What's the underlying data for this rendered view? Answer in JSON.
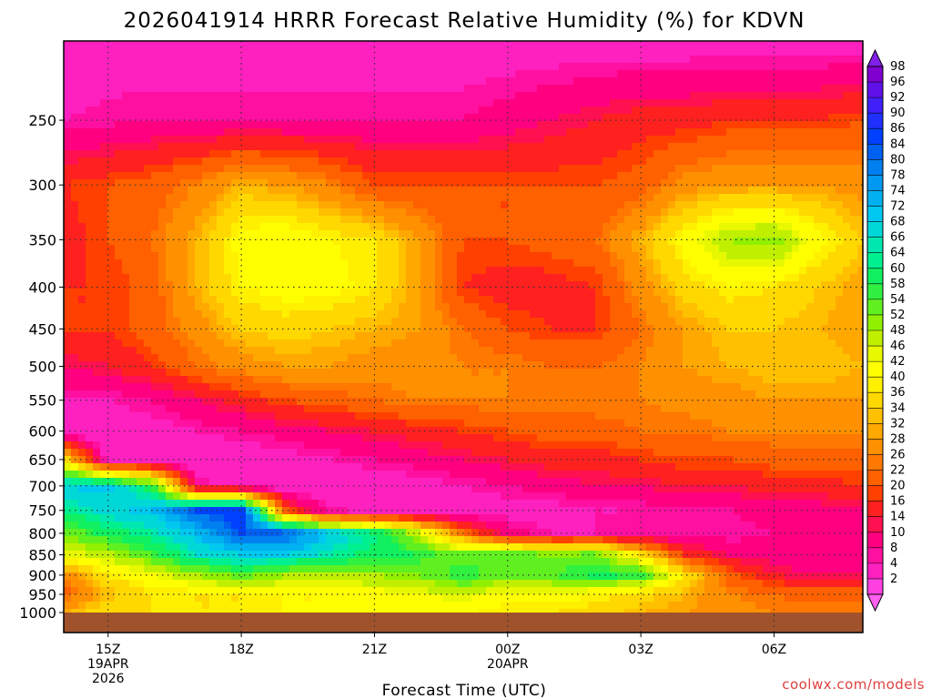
{
  "chart_data": {
    "type": "heatmap",
    "title": "2026041914 HRRR Forecast Relative Humidity (%) for KDVN",
    "xlabel": "Forecast Time (UTC)",
    "ylabel": "",
    "credit": "coolwx.com/models",
    "x_ticks": [
      {
        "hour": 15,
        "lines": [
          "15Z",
          "19APR",
          "2026"
        ]
      },
      {
        "hour": 18,
        "lines": [
          "18Z"
        ]
      },
      {
        "hour": 21,
        "lines": [
          "21Z"
        ]
      },
      {
        "hour": 24,
        "lines": [
          "00Z",
          "20APR"
        ]
      },
      {
        "hour": 27,
        "lines": [
          "03Z"
        ]
      },
      {
        "hour": 30,
        "lines": [
          "06Z"
        ]
      }
    ],
    "xlim_hours": [
      14,
      32
    ],
    "y_ticks": [
      250,
      300,
      350,
      400,
      450,
      500,
      550,
      600,
      650,
      700,
      750,
      800,
      850,
      900,
      950,
      1000
    ],
    "ylim_hpa": [
      200,
      1000
    ],
    "y_scale": "log",
    "grid": true,
    "ground_color": "#a0522d",
    "colorbar_labels": [
      "98",
      "96",
      "92",
      "90",
      "86",
      "84",
      "80",
      "78",
      "74",
      "72",
      "68",
      "66",
      "64",
      "60",
      "58",
      "54",
      "52",
      "48",
      "46",
      "42",
      "40",
      "36",
      "34",
      "32",
      "28",
      "26",
      "22",
      "20",
      "16",
      "14",
      "10",
      "8",
      "4",
      "2"
    ],
    "colorbar_colors": [
      "#8000d0",
      "#6010e8",
      "#4020f8",
      "#2030ff",
      "#0040ff",
      "#0060f0",
      "#0080f0",
      "#0098f0",
      "#00b0f0",
      "#00c8f0",
      "#00d8d8",
      "#00e8b0",
      "#00f090",
      "#10f060",
      "#30f040",
      "#60f020",
      "#90f000",
      "#c0f000",
      "#e8f800",
      "#ffff00",
      "#fff000",
      "#ffd800",
      "#ffc000",
      "#ffa800",
      "#ff9000",
      "#ff7800",
      "#ff6000",
      "#ff4000",
      "#ff2020",
      "#ff1050",
      "#ff0080",
      "#ff10a0",
      "#ff20c0",
      "#ff40e0"
    ],
    "hours": [
      14,
      15,
      16,
      17,
      18,
      19,
      20,
      21,
      22,
      23,
      24,
      25,
      26,
      27,
      28,
      29,
      30,
      31,
      32
    ],
    "levels": [
      200,
      250,
      300,
      350,
      400,
      450,
      500,
      550,
      600,
      650,
      700,
      750,
      800,
      850,
      900,
      950,
      1000
    ],
    "values": [
      [
        5,
        5,
        5,
        5,
        5,
        5,
        5,
        5,
        5,
        5,
        5,
        5,
        5,
        5,
        5,
        5,
        5,
        5,
        5
      ],
      [
        8,
        9,
        10,
        10,
        10,
        10,
        10,
        10,
        10,
        10,
        12,
        14,
        16,
        18,
        18,
        20,
        20,
        20,
        22
      ],
      [
        20,
        22,
        24,
        28,
        34,
        32,
        28,
        22,
        22,
        22,
        22,
        22,
        22,
        24,
        30,
        32,
        32,
        32,
        30
      ],
      [
        18,
        22,
        26,
        34,
        44,
        46,
        42,
        40,
        32,
        22,
        22,
        24,
        26,
        34,
        44,
        52,
        54,
        44,
        36
      ],
      [
        20,
        20,
        24,
        34,
        42,
        44,
        44,
        40,
        32,
        20,
        18,
        18,
        20,
        30,
        38,
        42,
        40,
        36,
        32
      ],
      [
        20,
        20,
        24,
        30,
        36,
        38,
        36,
        34,
        32,
        26,
        22,
        20,
        20,
        26,
        32,
        36,
        36,
        34,
        32
      ],
      [
        14,
        16,
        20,
        26,
        30,
        32,
        32,
        30,
        30,
        28,
        28,
        26,
        26,
        28,
        32,
        34,
        36,
        36,
        34
      ],
      [
        8,
        8,
        10,
        14,
        18,
        22,
        24,
        26,
        28,
        28,
        28,
        28,
        28,
        28,
        30,
        30,
        32,
        32,
        32
      ],
      [
        4,
        4,
        6,
        8,
        10,
        12,
        14,
        16,
        18,
        20,
        22,
        24,
        24,
        26,
        26,
        28,
        28,
        28,
        28
      ],
      [
        40,
        6,
        4,
        4,
        4,
        6,
        8,
        10,
        12,
        14,
        16,
        18,
        18,
        20,
        22,
        22,
        24,
        24,
        24
      ],
      [
        72,
        74,
        60,
        10,
        6,
        4,
        4,
        4,
        6,
        8,
        10,
        12,
        14,
        14,
        16,
        16,
        18,
        18,
        20
      ],
      [
        64,
        70,
        74,
        86,
        90,
        22,
        8,
        6,
        4,
        4,
        6,
        6,
        8,
        8,
        10,
        10,
        12,
        12,
        14
      ],
      [
        54,
        62,
        66,
        74,
        86,
        86,
        72,
        66,
        50,
        26,
        12,
        8,
        8,
        8,
        8,
        8,
        10,
        10,
        10
      ],
      [
        46,
        50,
        58,
        68,
        72,
        72,
        66,
        62,
        60,
        56,
        58,
        54,
        56,
        40,
        20,
        14,
        12,
        10,
        10
      ],
      [
        28,
        40,
        46,
        52,
        56,
        52,
        50,
        52,
        54,
        60,
        56,
        58,
        62,
        60,
        40,
        24,
        16,
        14,
        14
      ],
      [
        24,
        34,
        40,
        40,
        40,
        42,
        42,
        44,
        46,
        48,
        44,
        44,
        42,
        38,
        34,
        28,
        26,
        24,
        24
      ],
      [
        34,
        40,
        40,
        40,
        40,
        42,
        42,
        42,
        42,
        42,
        40,
        40,
        38,
        34,
        32,
        30,
        28,
        28,
        28
      ]
    ]
  }
}
